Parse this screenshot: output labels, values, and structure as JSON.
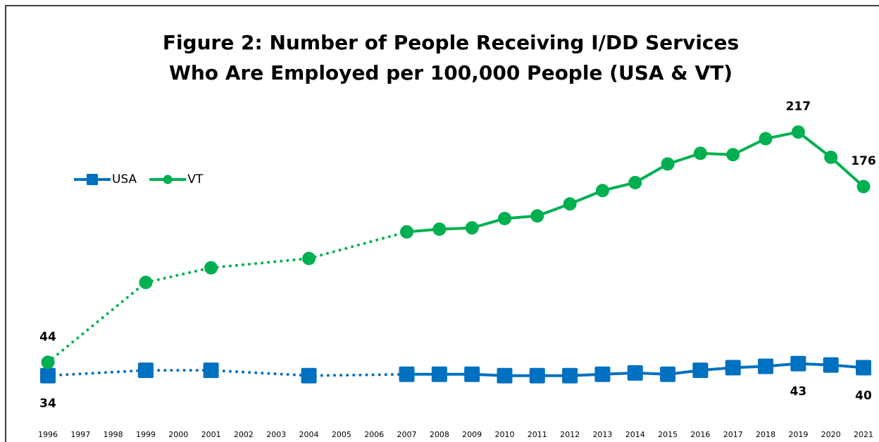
{
  "chart_data": {
    "type": "line",
    "title": [
      "Figure 2: Number of People Receiving I/DD Services",
      "Who Are Employed per 100,000 People (USA & VT)"
    ],
    "categories": [
      "1996",
      "1997",
      "1998",
      "1999",
      "2000",
      "2001",
      "2002",
      "2003",
      "2004",
      "2005",
      "2006",
      "2007",
      "2008",
      "2009",
      "2010",
      "2011",
      "2012",
      "2013",
      "2014",
      "2015",
      "2016",
      "2017",
      "2018",
      "2019",
      "2020",
      "2021"
    ],
    "series": [
      {
        "name": "USA",
        "color": "#0070c0",
        "marker": "square",
        "label_side": "below",
        "values": [
          34,
          null,
          null,
          38,
          null,
          38,
          null,
          null,
          34,
          null,
          null,
          35,
          35,
          35,
          34,
          34,
          34,
          35,
          36,
          35,
          38,
          40,
          41,
          43,
          42,
          40
        ]
      },
      {
        "name": "VT",
        "color": "#00b050",
        "marker": "circle",
        "label_side": "above",
        "values": [
          44,
          null,
          null,
          104,
          null,
          115,
          null,
          null,
          122,
          null,
          null,
          142,
          144,
          145,
          152,
          154,
          163,
          173,
          179,
          193,
          201,
          200,
          212,
          217,
          198,
          176
        ]
      }
    ],
    "labeled_points": [
      0,
      23,
      25
    ],
    "gap_style": "dotted",
    "ylim": [
      0,
      230
    ],
    "legend": "upper left"
  }
}
